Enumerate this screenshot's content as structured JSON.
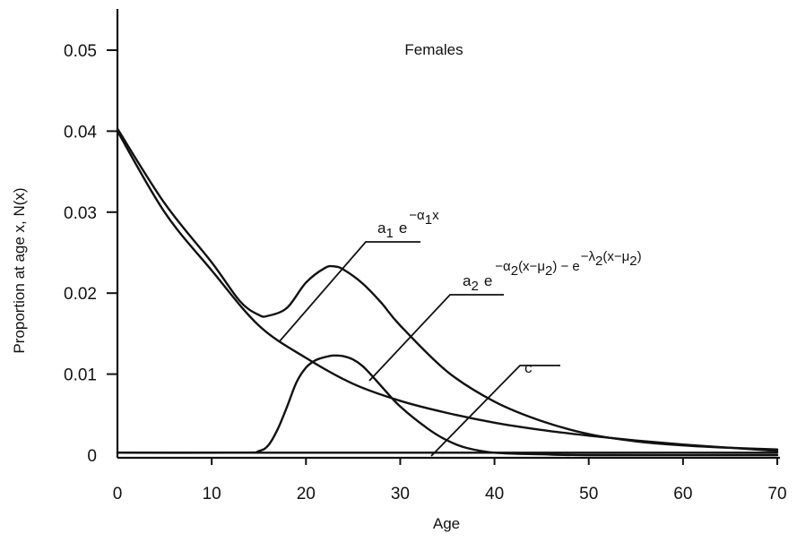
{
  "chart_data": {
    "type": "line",
    "title": "Females",
    "xlabel": "Age",
    "ylabel": "Proportion at age x, N(x)",
    "xlim": [
      0,
      70
    ],
    "ylim": [
      0,
      0.05
    ],
    "x_ticks": [
      "0",
      "10",
      "20",
      "30",
      "40",
      "50",
      "60",
      "70"
    ],
    "y_ticks": [
      "0",
      "0.01",
      "0.02",
      "0.03",
      "0.04",
      "0.05"
    ],
    "grid": false,
    "series": [
      {
        "role": "total",
        "x": [
          0,
          5,
          10,
          13,
          15,
          16,
          18,
          20,
          22,
          23,
          24,
          26,
          28,
          30,
          35,
          40,
          45,
          50,
          55,
          60,
          65,
          70
        ],
        "y": [
          0.0403,
          0.0311,
          0.0238,
          0.019,
          0.0173,
          0.0172,
          0.0182,
          0.0213,
          0.0231,
          0.0233,
          0.0229,
          0.0212,
          0.0188,
          0.016,
          0.0103,
          0.0066,
          0.0042,
          0.0026,
          0.0017,
          0.0012,
          0.0009,
          0.0007
        ]
      },
      {
        "role": "a1 e^{-α1 x}",
        "x": [
          0,
          5,
          10,
          15,
          20,
          25,
          30,
          35,
          40,
          45,
          50,
          55,
          60,
          65,
          70
        ],
        "y": [
          0.04,
          0.03,
          0.0228,
          0.016,
          0.012,
          0.0088,
          0.0067,
          0.0052,
          0.004,
          0.0031,
          0.0024,
          0.0018,
          0.0013,
          0.0009,
          0.0005
        ]
      },
      {
        "role": "a2 e^{-α2(x-μ2) - e^{-λ2(x-μ2)}}",
        "x": [
          0,
          13,
          15,
          16,
          17,
          18,
          19,
          20,
          21,
          22,
          23,
          24,
          25,
          26,
          27,
          28,
          30,
          33,
          35,
          37,
          40,
          45,
          50,
          70
        ],
        "y": [
          0.0003,
          0.0003,
          0.0005,
          0.0012,
          0.0032,
          0.006,
          0.009,
          0.0108,
          0.0117,
          0.0121,
          0.0123,
          0.0122,
          0.0118,
          0.011,
          0.0098,
          0.0085,
          0.006,
          0.0032,
          0.0018,
          0.0009,
          0.0003,
          0.0001,
          0.0,
          0.0
        ]
      },
      {
        "role": "c",
        "x": [
          0,
          70
        ],
        "y": [
          0.0003,
          0.0003
        ]
      }
    ],
    "annotations": [
      {
        "label": "a1 e^{-α1 x}",
        "base": "a",
        "base_sub": "1",
        "exponent": "−α",
        "exponent_sub": "1",
        "exponent_tail": "x"
      },
      {
        "label": "a2 e^{-α2(x-μ2) - e^{-λ2(x-μ2)}}",
        "base": "a",
        "base_sub": "2",
        "exponent": "−α",
        "exponent_sub": "2",
        "exponent_mid": "(x−μ",
        "exponent_sub2": "2",
        "exponent_mid2": ") − e",
        "exponent2": "−λ",
        "exponent2_sub": "2",
        "exponent2_mid": "(x−μ",
        "exponent2_sub2": "2",
        "exponent2_tail": ")"
      },
      {
        "label": "c",
        "text": "c"
      }
    ]
  }
}
